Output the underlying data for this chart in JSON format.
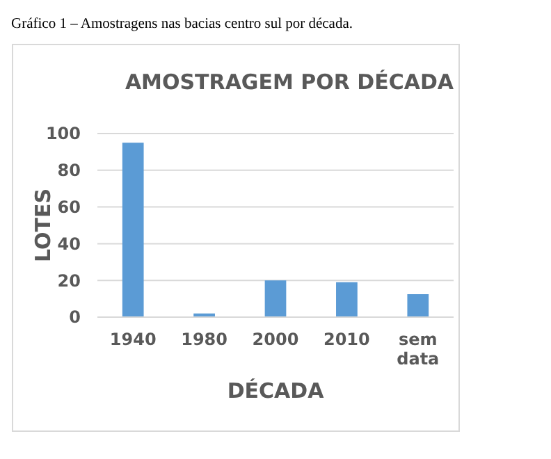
{
  "chart_data": {
    "type": "bar",
    "title": "AMOSTRAGEM POR DÉCADA",
    "xlabel": "DÉCADA",
    "ylabel": "LOTES",
    "annotations": [
      "Gráfico 1 – Amostragens nas bacias centro sul por década."
    ],
    "categories": [
      "1940",
      "1980",
      "2000",
      "2010",
      "sem data"
    ],
    "values": [
      95,
      2,
      20,
      19,
      12.5
    ],
    "color": "#5b9bd5",
    "ylim": [
      0,
      100
    ],
    "yticks": [
      0,
      20,
      40,
      60,
      80,
      100
    ],
    "grid": "y"
  }
}
